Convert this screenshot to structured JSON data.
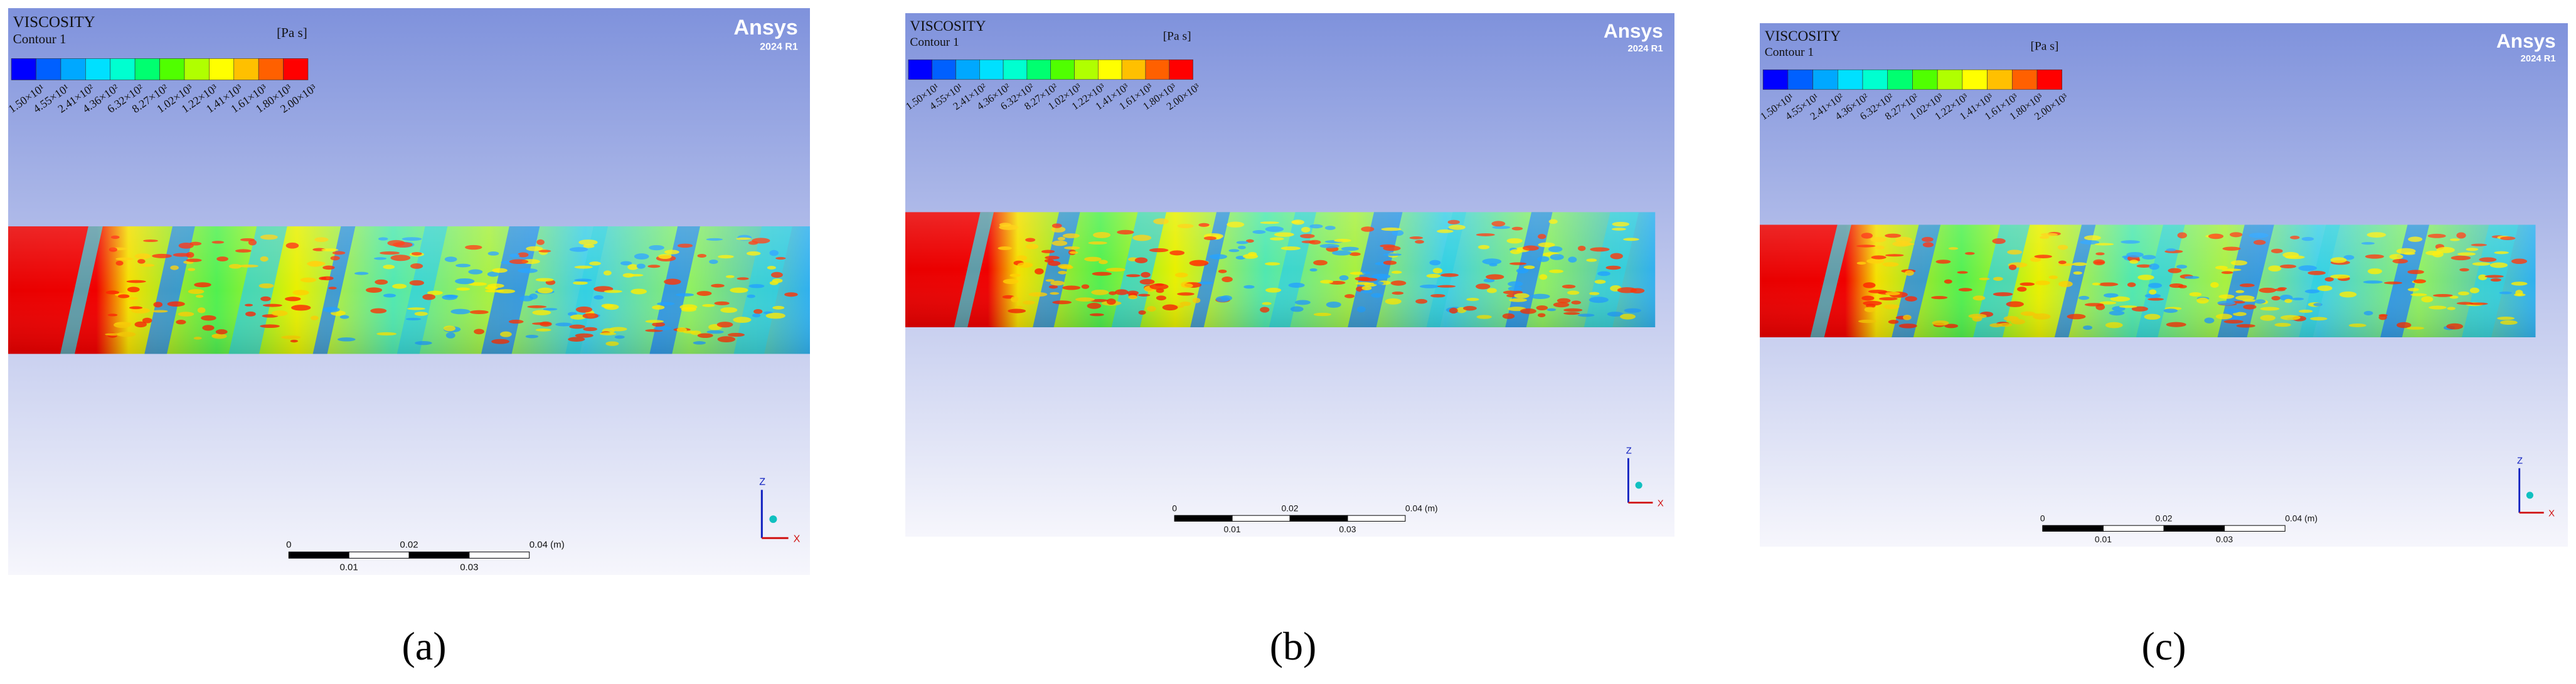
{
  "viewport": {
    "variable": "VISCOSITY",
    "contour": "Contour 1",
    "unit": "[Pa s]",
    "brand": "Ansys",
    "version": "2024 R1",
    "legend_labels": [
      "1.50×10¹",
      "4.55×10¹",
      "2.41×10²",
      "4.36×10²",
      "6.32×10²",
      "8.27×10²",
      "1.02×10³",
      "1.22×10³",
      "1.41×10³",
      "1.61×10³",
      "1.80×10³",
      "2.00×10³"
    ],
    "scale_labels_top": [
      "0",
      "0.02",
      "0.04 (m)"
    ],
    "scale_labels_bottom": [
      "0.01",
      "0.03"
    ],
    "axis_z": "Z",
    "axis_x": "X"
  },
  "captions": [
    "(a)",
    "(b)",
    "(c)"
  ]
}
